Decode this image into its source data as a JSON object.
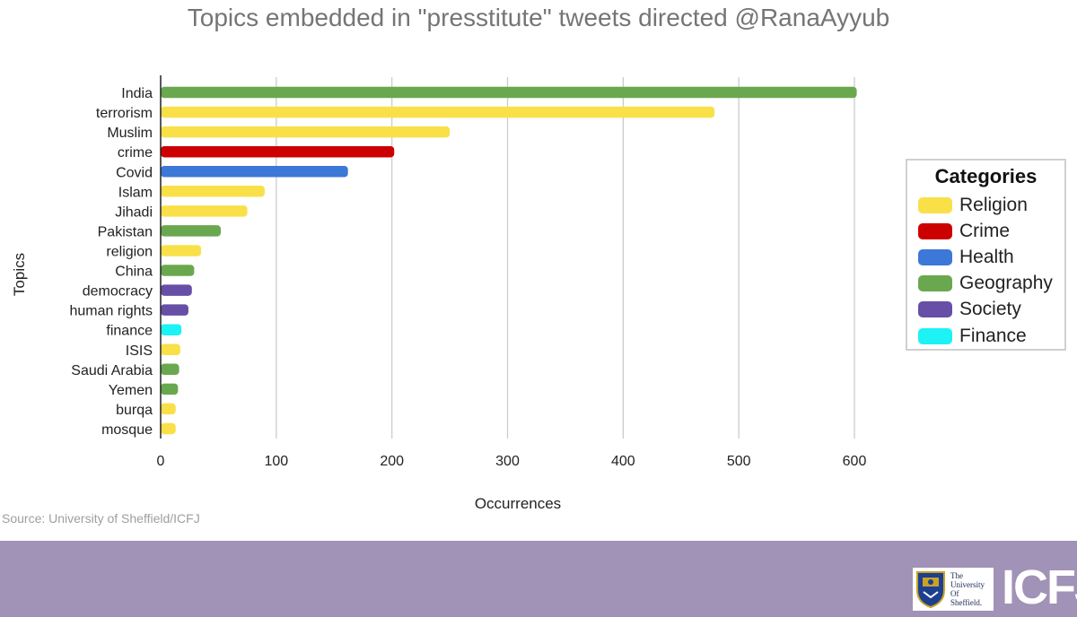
{
  "chart_data": {
    "type": "bar",
    "orientation": "horizontal",
    "title": "Topics embedded in \"presstitute\" tweets directed @RanaAyyub",
    "xlabel": "Occurrences",
    "ylabel": "Topics",
    "xlim": [
      0,
      600
    ],
    "xticks": [
      "0",
      "100",
      "200",
      "300",
      "400",
      "500",
      "600"
    ],
    "grid": true,
    "legend_placement": "right",
    "legend_title": "Categories",
    "categories_legend": [
      {
        "name": "Religion",
        "color": "#f9e048"
      },
      {
        "name": "Crime",
        "color": "#cc0000"
      },
      {
        "name": "Health",
        "color": "#3c78d8"
      },
      {
        "name": "Geography",
        "color": "#6aa84f"
      },
      {
        "name": "Society",
        "color": "#674ea7"
      },
      {
        "name": "Finance",
        "color": "#1df2f5"
      }
    ],
    "categories": [
      "India",
      "terrorism",
      "Muslim",
      "crime",
      "Covid",
      "Islam",
      "Jihadi",
      "Pakistan",
      "religion",
      "China",
      "democracy",
      "human rights",
      "finance",
      "ISIS",
      "Saudi Arabia",
      "Yemen",
      "burqa",
      "mosque"
    ],
    "values": [
      602,
      479,
      250,
      202,
      162,
      90,
      75,
      52,
      35,
      29,
      27,
      24,
      18,
      17,
      16,
      15,
      13,
      13
    ],
    "bar_category": [
      "Geography",
      "Religion",
      "Religion",
      "Crime",
      "Health",
      "Religion",
      "Religion",
      "Geography",
      "Religion",
      "Geography",
      "Society",
      "Society",
      "Finance",
      "Religion",
      "Geography",
      "Geography",
      "Religion",
      "Religion"
    ]
  },
  "source": "Source: University of Sheffield/ICFJ",
  "footer": {
    "university_logo_text": [
      "The",
      "University",
      "Of",
      "Sheffield."
    ],
    "icfj_logo_text": "ICFJ"
  }
}
